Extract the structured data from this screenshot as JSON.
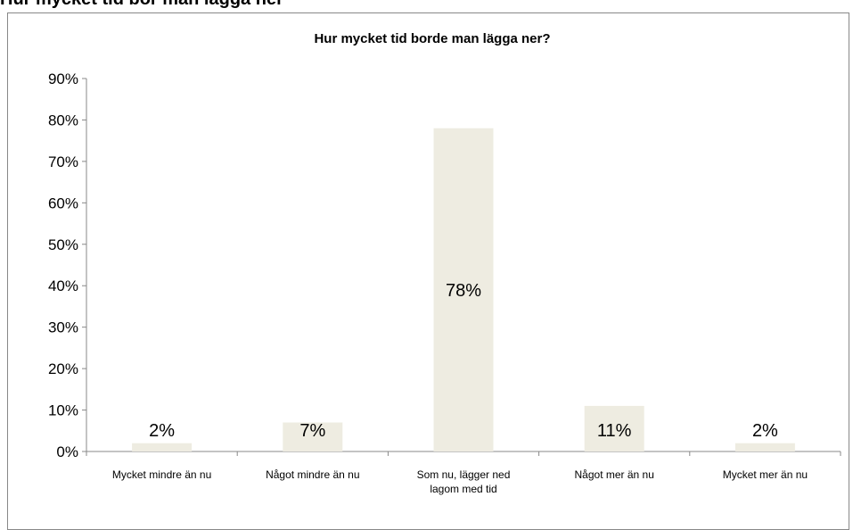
{
  "page": {
    "heading": "Hur mycket tid bör man lägga ner"
  },
  "chart_data": {
    "type": "bar",
    "title": "Hur mycket tid borde man lägga ner?",
    "xlabel": "",
    "ylabel": "",
    "categories": [
      [
        "Mycket mindre än nu"
      ],
      [
        "Något mindre än nu"
      ],
      [
        "Som nu, lägger ned",
        "lagom med tid"
      ],
      [
        "Något mer än nu"
      ],
      [
        "Mycket mer än nu"
      ]
    ],
    "values": [
      2,
      7,
      78,
      11,
      2
    ],
    "value_labels": [
      "2%",
      "7%",
      "78%",
      "11%",
      "2%"
    ],
    "y_ticks": [
      "0%",
      "10%",
      "20%",
      "30%",
      "40%",
      "50%",
      "60%",
      "70%",
      "80%",
      "90%"
    ],
    "ylim": [
      0,
      90
    ],
    "grid": false,
    "legend": "none",
    "colors": {
      "bar": "#eeece1",
      "axis": "#888888"
    }
  }
}
